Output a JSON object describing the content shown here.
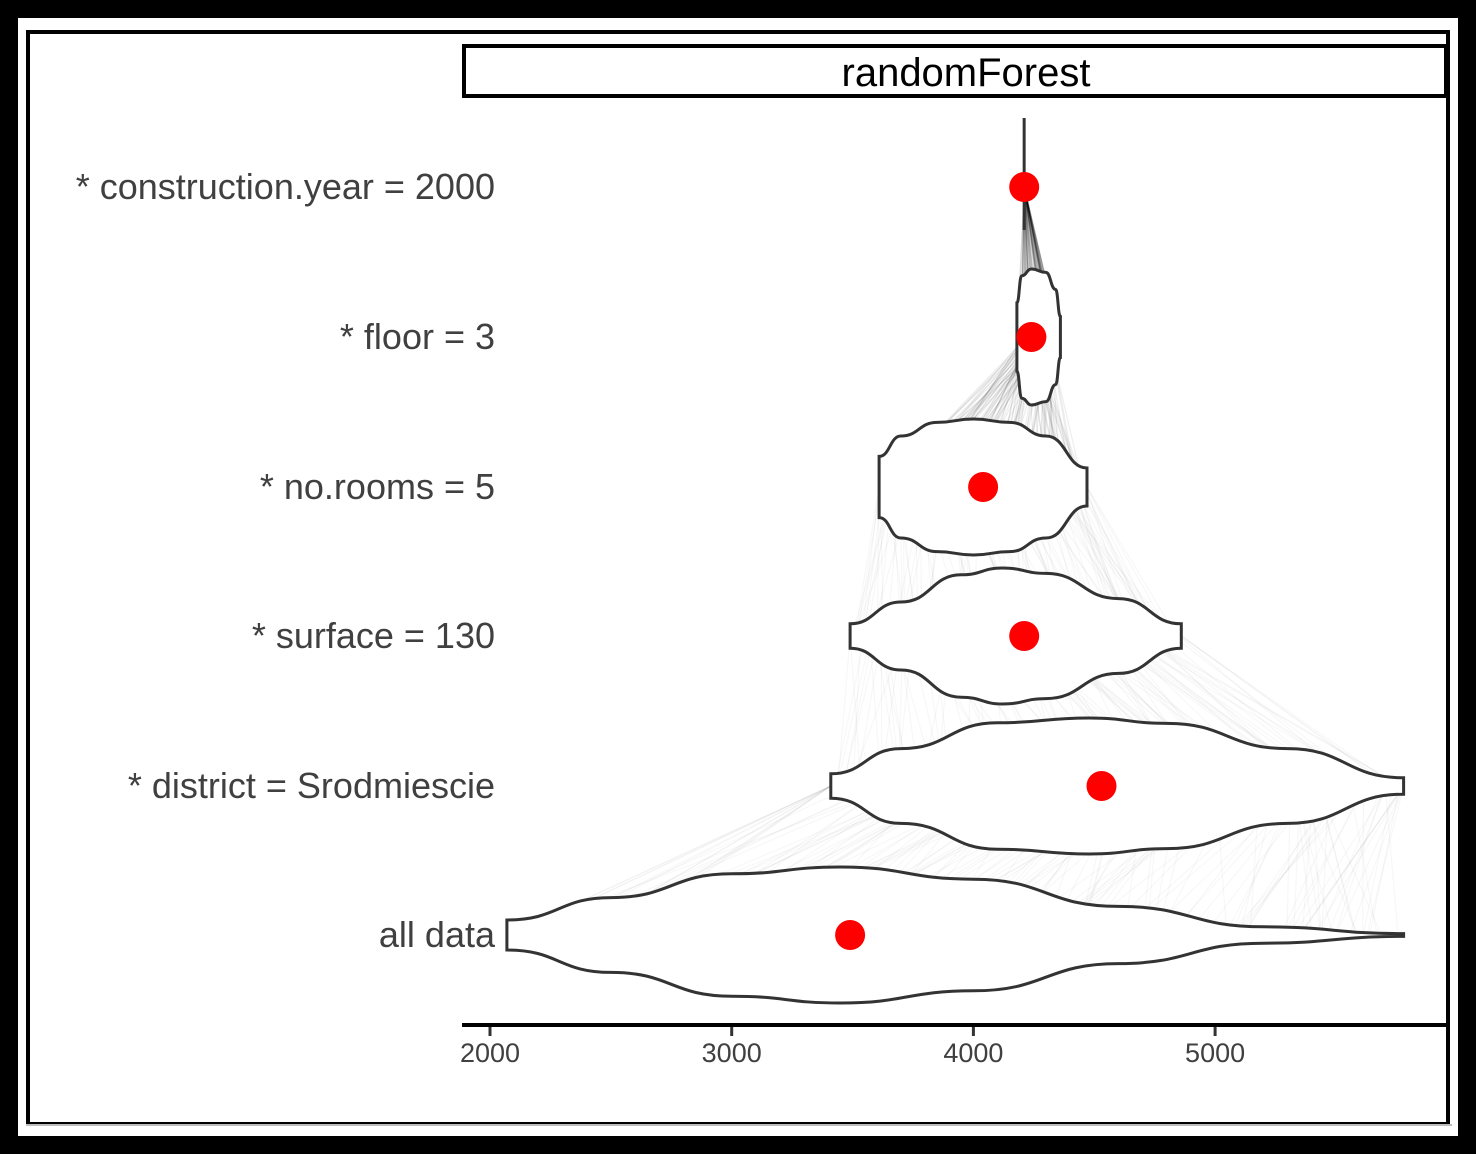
{
  "chart_data": {
    "type": "violin",
    "title": "",
    "facet": "randomForest",
    "xlabel": "",
    "ylabel": "",
    "xlim": [
      1900,
      5950
    ],
    "xticks": [
      2000,
      3000,
      4000,
      5000
    ],
    "grid": false,
    "colors": {
      "point": "#ff0000",
      "outline": "#333333",
      "fill": "#ffffff",
      "lines": "#000000"
    },
    "categories": [
      "* construction.year = 2000",
      "* floor = 3",
      "* no.rooms = 5",
      "* surface = 130",
      "* district = Srodmiescie",
      "all data"
    ],
    "means": [
      4210,
      4240,
      4040,
      4210,
      4530,
      3490
    ],
    "violins": [
      {
        "label": "* construction.year = 2000",
        "profile": [
          [
            4210,
            0
          ],
          [
            4211,
            0
          ]
        ]
      },
      {
        "label": "* floor = 3",
        "profile": [
          [
            4180,
            0.05
          ],
          [
            4180,
            0.5
          ],
          [
            4200,
            0.9
          ],
          [
            4240,
            1.0
          ],
          [
            4300,
            0.95
          ],
          [
            4340,
            0.7
          ],
          [
            4360,
            0.3
          ]
        ]
      },
      {
        "label": "* no.rooms = 5",
        "profile": [
          [
            3610,
            0.45
          ],
          [
            3700,
            0.75
          ],
          [
            3850,
            0.95
          ],
          [
            4000,
            1.0
          ],
          [
            4150,
            0.95
          ],
          [
            4300,
            0.75
          ],
          [
            4470,
            0.28
          ]
        ]
      },
      {
        "label": "* surface = 130",
        "profile": [
          [
            3490,
            0.18
          ],
          [
            3700,
            0.5
          ],
          [
            3950,
            0.9
          ],
          [
            4120,
            1.0
          ],
          [
            4300,
            0.92
          ],
          [
            4600,
            0.55
          ],
          [
            4860,
            0.18
          ]
        ]
      },
      {
        "label": "* district = Srodmiescie",
        "profile": [
          [
            3410,
            0.18
          ],
          [
            3700,
            0.55
          ],
          [
            4100,
            0.93
          ],
          [
            4480,
            1.0
          ],
          [
            4800,
            0.92
          ],
          [
            5300,
            0.55
          ],
          [
            5780,
            0.12
          ]
        ]
      },
      {
        "label": "all data",
        "profile": [
          [
            2070,
            0.22
          ],
          [
            2500,
            0.55
          ],
          [
            3000,
            0.9
          ],
          [
            3450,
            1.0
          ],
          [
            4000,
            0.82
          ],
          [
            4600,
            0.42
          ],
          [
            5200,
            0.12
          ],
          [
            5780,
            0.02
          ]
        ]
      }
    ]
  }
}
